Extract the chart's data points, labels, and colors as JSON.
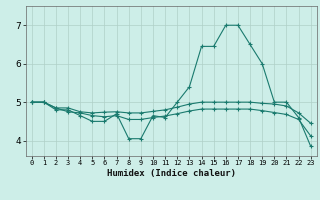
{
  "xlabel": "Humidex (Indice chaleur)",
  "ylabel": "",
  "xlim": [
    -0.5,
    23.5
  ],
  "ylim": [
    3.6,
    7.5
  ],
  "yticks": [
    4,
    5,
    6,
    7
  ],
  "xticks": [
    0,
    1,
    2,
    3,
    4,
    5,
    6,
    7,
    8,
    9,
    10,
    11,
    12,
    13,
    14,
    15,
    16,
    17,
    18,
    19,
    20,
    21,
    22,
    23
  ],
  "bg_color": "#cdeee8",
  "line_color": "#1a7a6e",
  "grid_color": "#b0d0c8",
  "lines": [
    {
      "x": [
        0,
        1,
        2,
        3,
        4,
        5,
        6,
        7,
        8,
        9,
        10,
        11,
        12,
        13,
        14,
        15,
        16,
        17,
        18,
        19,
        20,
        21,
        22,
        23
      ],
      "y": [
        5.0,
        5.0,
        4.8,
        4.8,
        4.65,
        4.5,
        4.5,
        4.7,
        4.05,
        4.05,
        4.65,
        4.6,
        5.0,
        5.4,
        6.45,
        6.45,
        7.0,
        7.0,
        6.5,
        6.0,
        5.0,
        5.0,
        4.6,
        3.85
      ]
    },
    {
      "x": [
        0,
        1,
        2,
        3,
        4,
        5,
        6,
        7,
        8,
        9,
        10,
        11,
        12,
        13,
        14,
        15,
        16,
        17,
        18,
        19,
        20,
        21,
        22,
        23
      ],
      "y": [
        5.0,
        5.0,
        4.85,
        4.85,
        4.75,
        4.72,
        4.74,
        4.75,
        4.72,
        4.72,
        4.76,
        4.8,
        4.87,
        4.95,
        5.0,
        5.0,
        5.0,
        5.0,
        5.0,
        4.97,
        4.95,
        4.9,
        4.72,
        4.45
      ]
    },
    {
      "x": [
        0,
        1,
        2,
        3,
        4,
        5,
        6,
        7,
        8,
        9,
        10,
        11,
        12,
        13,
        14,
        15,
        16,
        17,
        18,
        19,
        20,
        21,
        22,
        23
      ],
      "y": [
        5.0,
        5.0,
        4.85,
        4.75,
        4.72,
        4.65,
        4.62,
        4.65,
        4.55,
        4.55,
        4.6,
        4.64,
        4.7,
        4.77,
        4.82,
        4.82,
        4.82,
        4.82,
        4.82,
        4.78,
        4.73,
        4.68,
        4.55,
        4.12
      ]
    }
  ]
}
